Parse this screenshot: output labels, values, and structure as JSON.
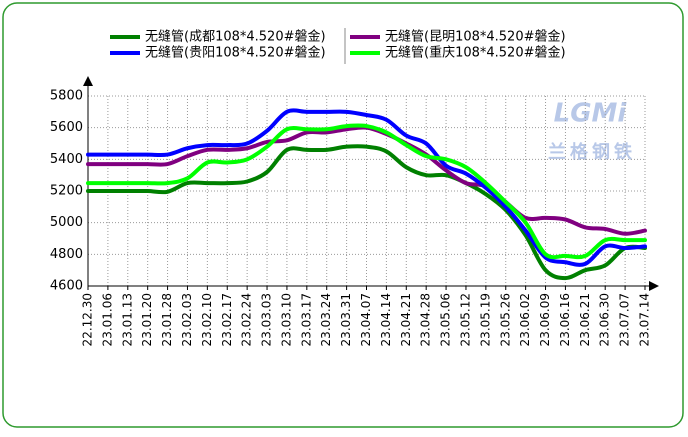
{
  "chart_data": {
    "type": "line",
    "categories": [
      "22.12.30",
      "23.01.06",
      "23.01.13",
      "23.01.20",
      "23.01.28",
      "23.02.03",
      "23.02.10",
      "23.02.17",
      "23.02.24",
      "23.03.03",
      "23.03.10",
      "23.03.17",
      "23.03.24",
      "23.03.31",
      "23.04.07",
      "23.04.14",
      "23.04.21",
      "23.04.28",
      "23.05.06",
      "23.05.12",
      "23.05.19",
      "23.05.26",
      "23.06.02",
      "23.06.09",
      "23.06.16",
      "23.06.21",
      "23.06.30",
      "23.07.07",
      "23.07.14"
    ],
    "series": [
      {
        "name": "无缝管(成都108*4.520#磐金)",
        "color": "#008000",
        "values": [
          5200,
          5200,
          5200,
          5200,
          5195,
          5250,
          5250,
          5250,
          5260,
          5320,
          5460,
          5460,
          5460,
          5480,
          5480,
          5450,
          5350,
          5300,
          5300,
          5250,
          5180,
          5080,
          4920,
          4700,
          4650,
          4700,
          4730,
          4840,
          4840
        ]
      },
      {
        "name": "无缝管(昆明108*4.520#磐金)",
        "color": "#800080",
        "values": [
          5370,
          5370,
          5370,
          5370,
          5370,
          5420,
          5460,
          5460,
          5470,
          5510,
          5520,
          5570,
          5570,
          5590,
          5600,
          5560,
          5500,
          5430,
          5330,
          5250,
          5230,
          5130,
          5030,
          5030,
          5020,
          4970,
          4960,
          4930,
          4950
        ]
      },
      {
        "name": "无缝管(贵阳108*4.520#磐金)",
        "color": "#0000ff",
        "values": [
          5430,
          5430,
          5430,
          5430,
          5430,
          5470,
          5490,
          5490,
          5500,
          5580,
          5700,
          5700,
          5700,
          5700,
          5680,
          5650,
          5550,
          5500,
          5360,
          5310,
          5220,
          5100,
          4950,
          4780,
          4750,
          4740,
          4850,
          4840,
          4850
        ]
      },
      {
        "name": "无缝管(重庆108*4.520#磐金)",
        "color": "#00ff00",
        "values": [
          5250,
          5250,
          5250,
          5250,
          5250,
          5280,
          5380,
          5380,
          5400,
          5480,
          5590,
          5590,
          5590,
          5610,
          5610,
          5570,
          5490,
          5420,
          5400,
          5350,
          5250,
          5130,
          5000,
          4800,
          4790,
          4790,
          4890,
          4890,
          4890
        ]
      }
    ],
    "ylim": [
      4600,
      5800
    ],
    "yticks": [
      4600,
      4800,
      5000,
      5200,
      5400,
      5600,
      5800
    ],
    "grid": true,
    "watermark": [
      "LGMi",
      "兰格钢铁"
    ]
  }
}
